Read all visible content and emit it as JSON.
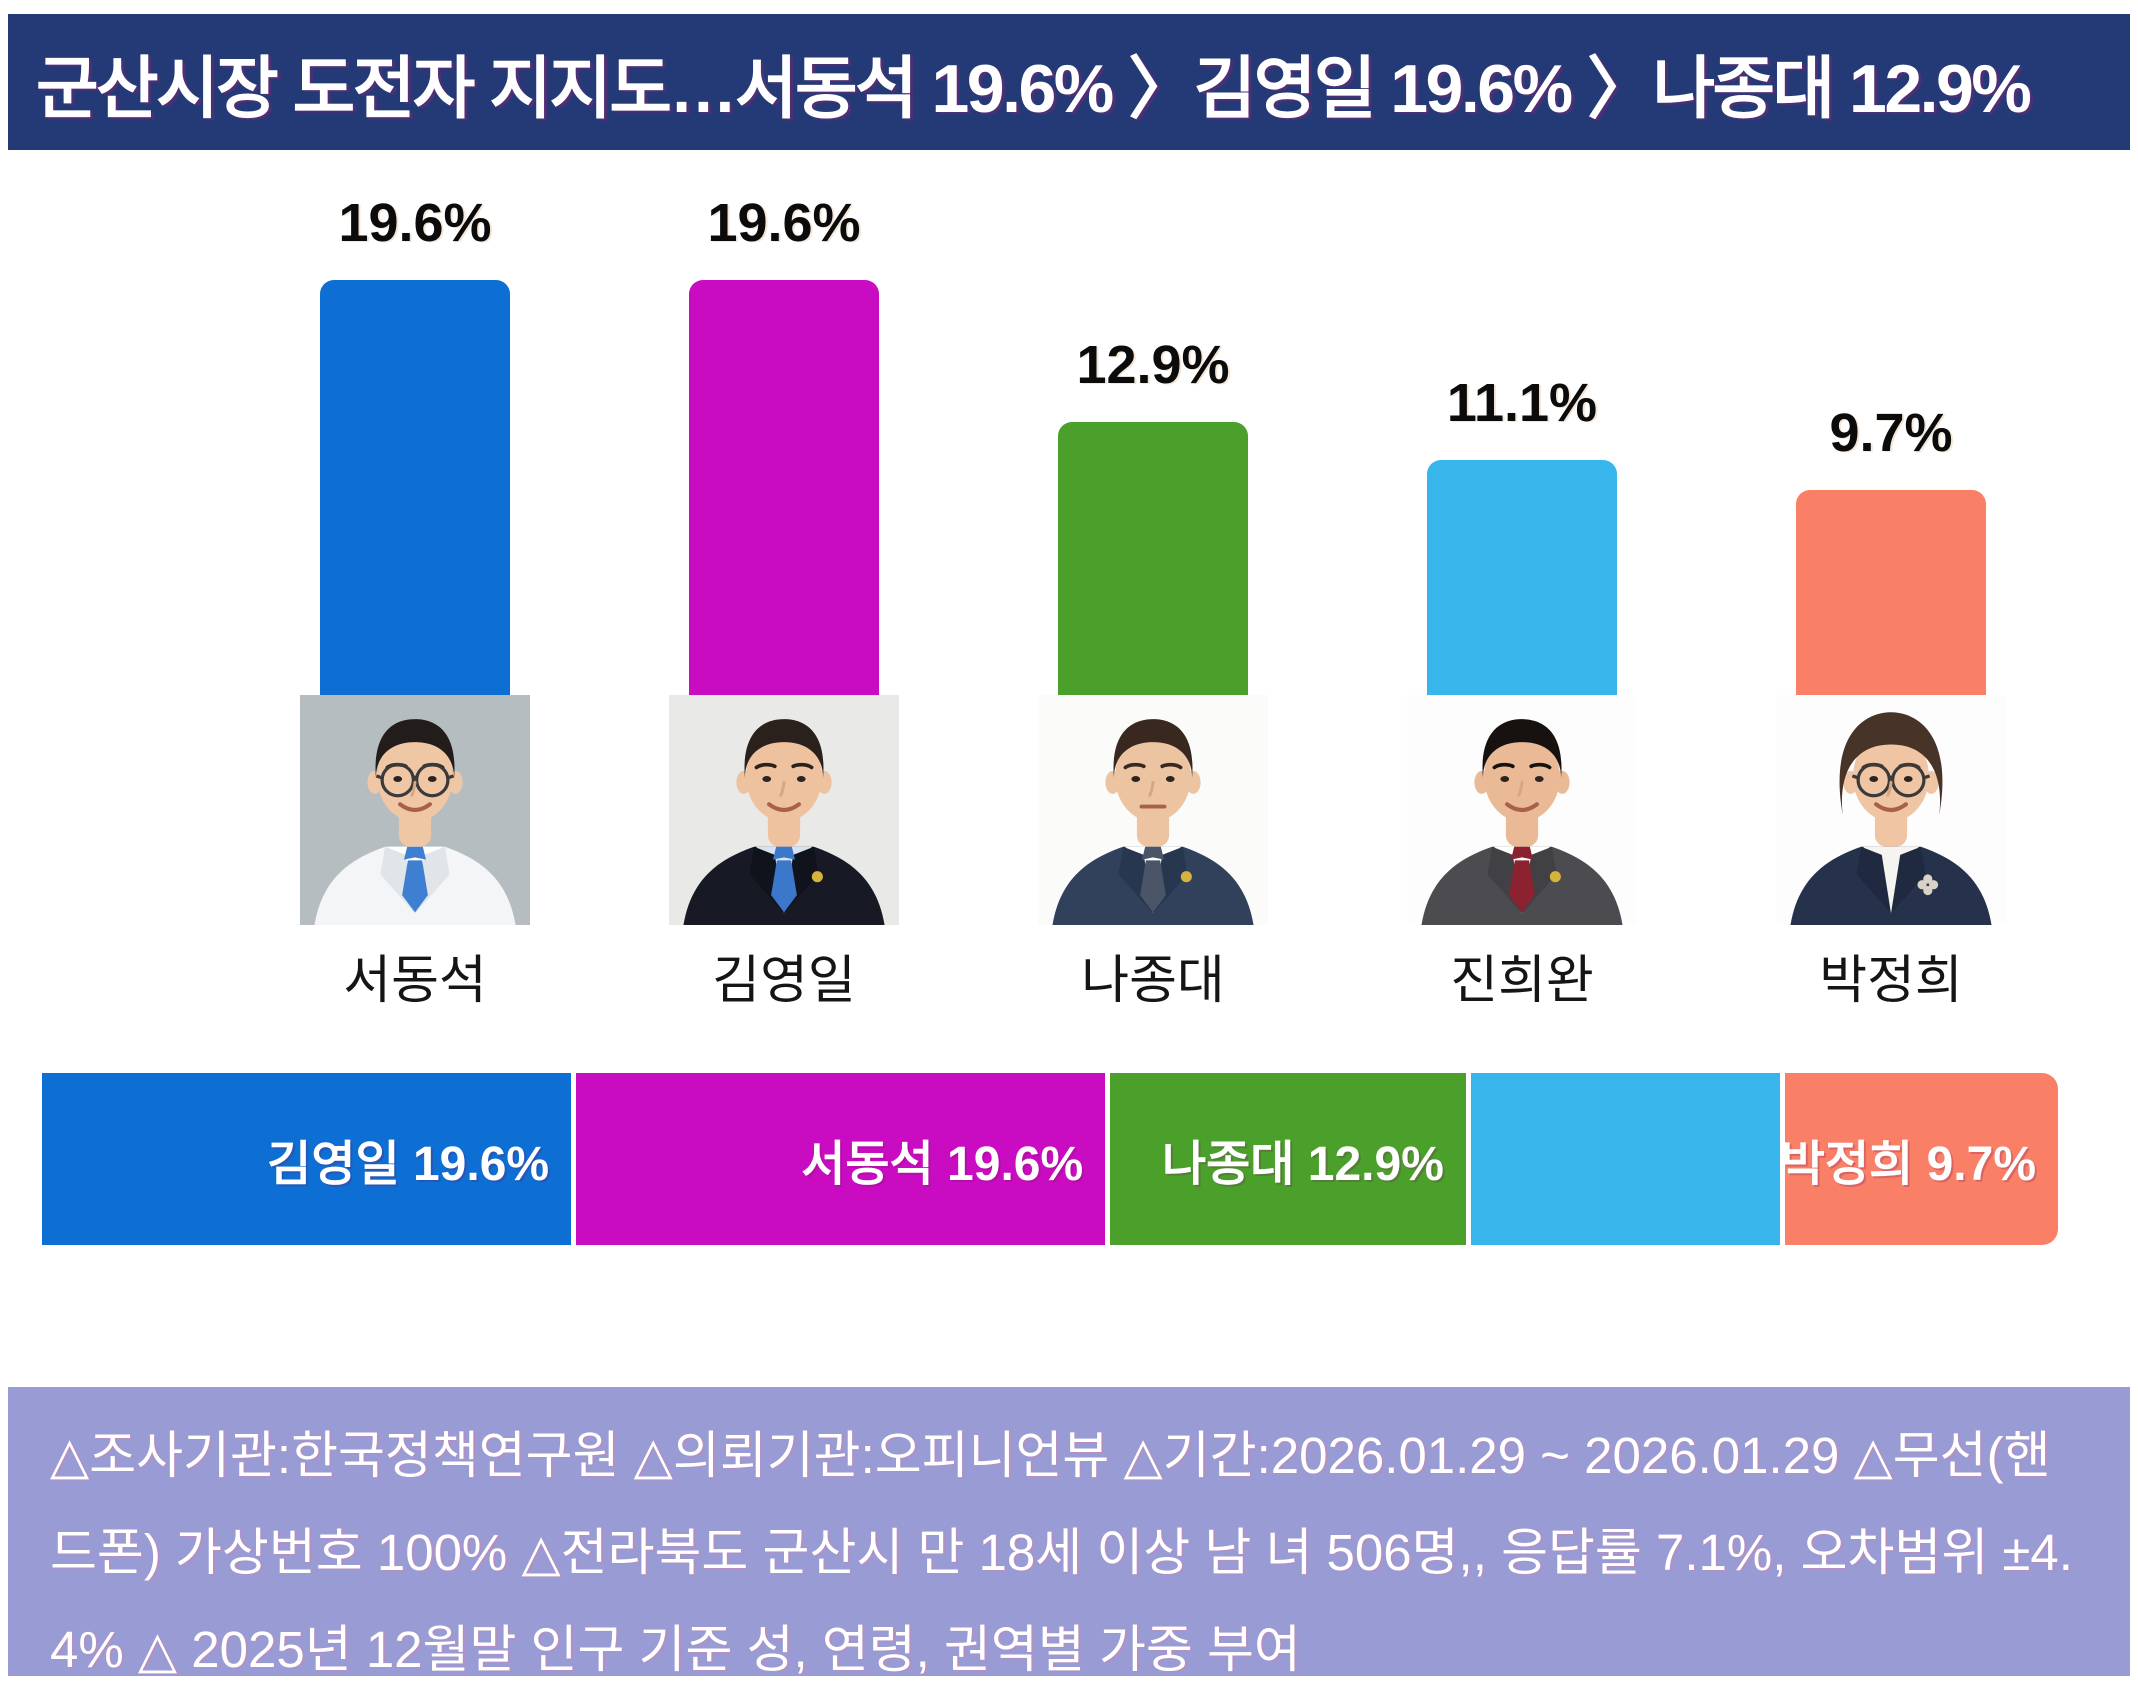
{
  "header": {
    "title": "군산시장 도전자 지지도…서동석 19.6% 〉김영일 19.6% 〉나종대 12.9%",
    "bg_color": "#243a76"
  },
  "chart_data": {
    "type": "bar",
    "title": "군산시장 도전자 지지도…서동석 19.6% 〉김영일 19.6% 〉나종대 12.9%",
    "categories": [
      "서동석",
      "김영일",
      "나종대",
      "진희완",
      "박정희"
    ],
    "values": [
      19.6,
      19.6,
      12.9,
      11.1,
      9.7
    ],
    "value_labels": [
      "19.6%",
      "19.6%",
      "12.9%",
      "11.1%",
      "9.7%"
    ],
    "colors": [
      "#0d6ed3",
      "#c90cc1",
      "#4ba02c",
      "#38b6ec",
      "#f98066"
    ],
    "xlabel": "",
    "ylabel": "",
    "ylim": [
      0,
      22
    ],
    "grid": false,
    "legend": false,
    "bar_labels_position": "above",
    "stacked_summary_bar": {
      "segments": [
        {
          "label": "김영일 19.6%",
          "value": 19.6,
          "color": "#0d6ed3"
        },
        {
          "label": "서동석 19.6%",
          "value": 19.6,
          "color": "#c90cc1"
        },
        {
          "label": "나종대 12.9%",
          "value": 12.9,
          "color": "#4ba02c"
        },
        {
          "label": "",
          "value": 11.1,
          "color": "#38b6ec"
        },
        {
          "label": "박정희 9.7%",
          "value": 9.7,
          "color": "#f98066"
        }
      ]
    }
  },
  "candidates": [
    {
      "name": "서동석",
      "pct_label": "19.6%",
      "value": 19.6,
      "color": "#0d6ed3",
      "photo": {
        "bg": "#b5bdc1",
        "suit": "#f3f5f7",
        "lapel": "#dfe5e9",
        "shirt": "#ffffff",
        "tie": "#3f7fd1",
        "skin": "#f0c7a5",
        "hair": "#221d1a",
        "glasses": true,
        "female": false,
        "smile": true,
        "badge": false,
        "brooch": false
      }
    },
    {
      "name": "김영일",
      "pct_label": "19.6%",
      "value": 19.6,
      "color": "#c90cc1",
      "photo": {
        "bg": "#e9e9e7",
        "suit": "#171a24",
        "lapel": "#10131c",
        "shirt": "#d6e4ef",
        "tie": "#3b78c9",
        "skin": "#eec29e",
        "hair": "#2a211c",
        "glasses": false,
        "female": false,
        "smile": true,
        "badge": true,
        "brooch": false
      }
    },
    {
      "name": "나종대",
      "pct_label": "12.9%",
      "value": 12.9,
      "color": "#4ba02c",
      "photo": {
        "bg": "#fbfbfa",
        "suit": "#31415c",
        "lapel": "#283750",
        "shirt": "#ffffff",
        "tie": "#4a5668",
        "skin": "#edc4a2",
        "hair": "#38281f",
        "glasses": false,
        "female": false,
        "smile": false,
        "badge": true,
        "brooch": false
      }
    },
    {
      "name": "진희완",
      "pct_label": "11.1%",
      "value": 11.1,
      "color": "#38b6ec",
      "photo": {
        "bg": "#fdfdfd",
        "suit": "#4c4c50",
        "lapel": "#414145",
        "shirt": "#ffffff",
        "tie": "#8c2230",
        "skin": "#e9ba95",
        "hair": "#17120f",
        "glasses": false,
        "female": false,
        "smile": true,
        "badge": true,
        "brooch": false
      }
    },
    {
      "name": "박정희",
      "pct_label": "9.7%",
      "value": 9.7,
      "color": "#f98066",
      "photo": {
        "bg": "#fdfdfd",
        "suit": "#26324b",
        "lapel": "#1f2a40",
        "shirt": "#f6f4f0",
        "tie": "",
        "skin": "#f0c5a4",
        "hair": "#483329",
        "glasses": true,
        "female": true,
        "smile": true,
        "badge": false,
        "brooch": true
      }
    }
  ],
  "footer": {
    "text": "△조사기관:한국정책연구원 △의뢰기관:오피니언뷰 △기간:2026.01.29 ~ 2026.01.29 △무선(핸드폰) 가상번호 100% △전라북도 군산시 만 18세 이상 남 녀 506명,, 응답률 7.1%, 오차범위 ±4.4% △ 2025년 12월말 인구 기준 성, 연령, 권역별 가중 부여",
    "bg_color": "#999bd4"
  }
}
